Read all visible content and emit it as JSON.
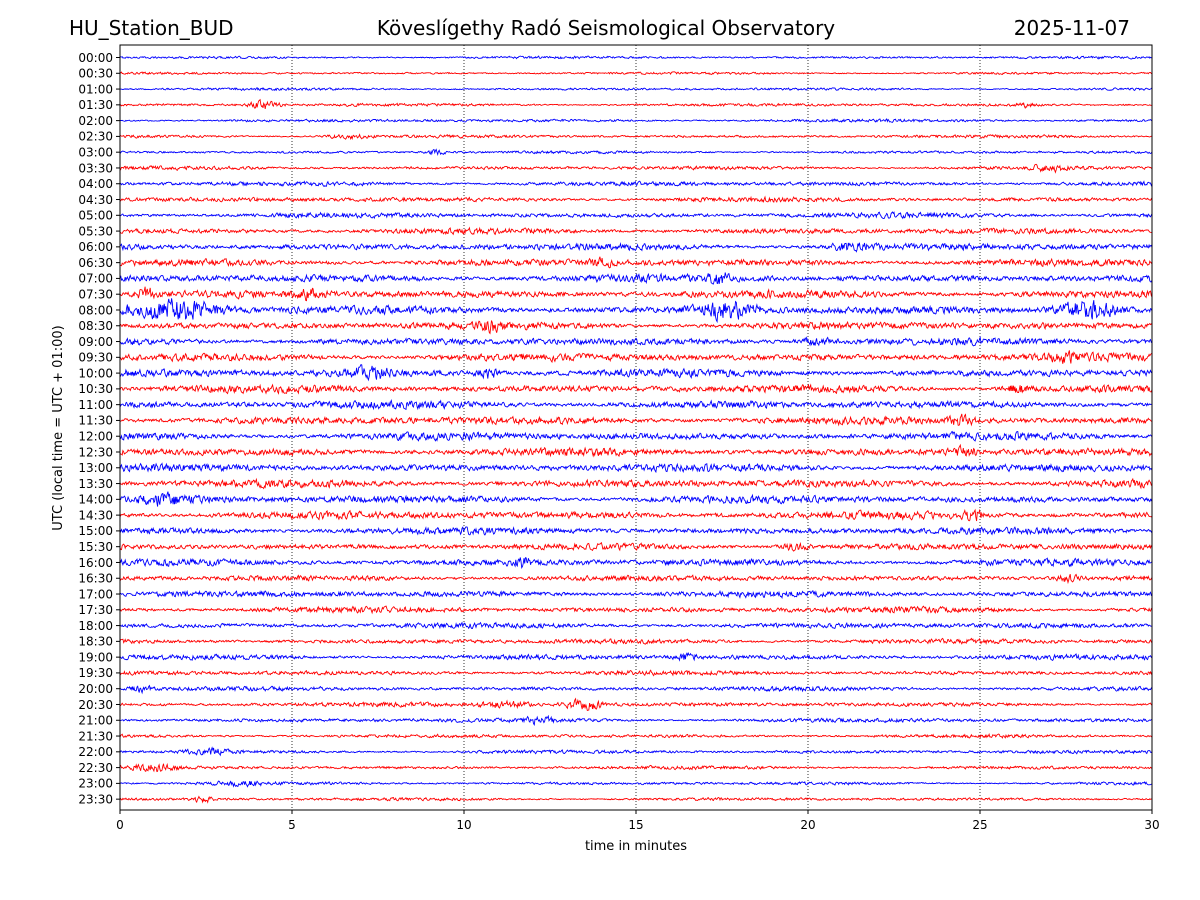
{
  "chart_data": {
    "type": "line",
    "title": {
      "left": "HU_Station_BUD",
      "center": "Köveslígethy Radó Seismological Observatory",
      "right": "2025-11-07"
    },
    "xlabel": "time in minutes",
    "ylabel": "UTC (local time = UTC + 01:00)",
    "xlim": [
      0,
      30
    ],
    "x_ticks": [
      0,
      5,
      10,
      15,
      20,
      25,
      30
    ],
    "grid": "vertical dotted",
    "series_colors": [
      "#0000ff",
      "#ff0000"
    ],
    "rows": [
      {
        "label": "00:00",
        "amp": 0.18,
        "events": []
      },
      {
        "label": "00:30",
        "amp": 0.17,
        "events": []
      },
      {
        "label": "01:00",
        "amp": 0.18,
        "events": []
      },
      {
        "label": "01:30",
        "amp": 0.22,
        "events": [
          {
            "t": 4.2,
            "amp": 0.7,
            "width": 0.4
          },
          {
            "t": 26.3,
            "amp": 0.35,
            "width": 0.3
          }
        ]
      },
      {
        "label": "02:00",
        "amp": 0.22,
        "events": []
      },
      {
        "label": "02:30",
        "amp": 0.22,
        "events": [
          {
            "t": 6.6,
            "amp": 0.35,
            "width": 0.6
          }
        ]
      },
      {
        "label": "03:00",
        "amp": 0.2,
        "events": [
          {
            "t": 9.2,
            "amp": 0.35,
            "width": 0.3
          }
        ]
      },
      {
        "label": "03:30",
        "amp": 0.26,
        "events": [
          {
            "t": 27.1,
            "amp": 0.45,
            "width": 0.6
          }
        ]
      },
      {
        "label": "04:00",
        "amp": 0.32,
        "events": []
      },
      {
        "label": "04:30",
        "amp": 0.34,
        "events": []
      },
      {
        "label": "05:00",
        "amp": 0.38,
        "events": []
      },
      {
        "label": "05:30",
        "amp": 0.4,
        "events": []
      },
      {
        "label": "06:00",
        "amp": 0.48,
        "events": [
          {
            "t": 21.2,
            "amp": 0.6,
            "width": 0.6
          }
        ]
      },
      {
        "label": "06:30",
        "amp": 0.5,
        "events": [
          {
            "t": 14.0,
            "amp": 0.6,
            "width": 0.3
          }
        ]
      },
      {
        "label": "07:00",
        "amp": 0.55,
        "events": [
          {
            "t": 17.4,
            "amp": 1.1,
            "width": 0.25
          }
        ]
      },
      {
        "label": "07:30",
        "amp": 0.55,
        "events": [
          {
            "t": 5.5,
            "amp": 0.7,
            "width": 0.4
          },
          {
            "t": 0.8,
            "amp": 1.0,
            "width": 0.3
          }
        ]
      },
      {
        "label": "08:00",
        "amp": 0.55,
        "events": [
          {
            "t": 1.6,
            "amp": 1.7,
            "width": 1.3
          },
          {
            "t": 17.6,
            "amp": 1.5,
            "width": 0.8
          },
          {
            "t": 28.1,
            "amp": 1.6,
            "width": 0.9
          }
        ]
      },
      {
        "label": "08:30",
        "amp": 0.52,
        "events": [
          {
            "t": 10.8,
            "amp": 0.6,
            "width": 0.3
          }
        ]
      },
      {
        "label": "09:00",
        "amp": 0.52,
        "events": [
          {
            "t": 20.3,
            "amp": 0.6,
            "width": 0.5
          }
        ]
      },
      {
        "label": "09:30",
        "amp": 0.55,
        "events": [
          {
            "t": 27.5,
            "amp": 0.6,
            "width": 0.5
          }
        ]
      },
      {
        "label": "10:00",
        "amp": 0.55,
        "events": [
          {
            "t": 7.2,
            "amp": 0.75,
            "width": 0.8
          },
          {
            "t": 10.7,
            "amp": 0.8,
            "width": 0.3
          }
        ]
      },
      {
        "label": "10:30",
        "amp": 0.55,
        "events": [
          {
            "t": 26.1,
            "amp": 0.7,
            "width": 0.4
          }
        ]
      },
      {
        "label": "11:00",
        "amp": 0.55,
        "events": []
      },
      {
        "label": "11:30",
        "amp": 0.55,
        "events": [
          {
            "t": 24.5,
            "amp": 0.7,
            "width": 0.4
          }
        ]
      },
      {
        "label": "12:00",
        "amp": 0.55,
        "events": []
      },
      {
        "label": "12:30",
        "amp": 0.55,
        "events": [
          {
            "t": 24.6,
            "amp": 0.7,
            "width": 0.4
          }
        ]
      },
      {
        "label": "13:00",
        "amp": 0.55,
        "events": []
      },
      {
        "label": "13:30",
        "amp": 0.55,
        "events": []
      },
      {
        "label": "14:00",
        "amp": 0.55,
        "events": [
          {
            "t": 1.3,
            "amp": 0.8,
            "width": 0.8
          }
        ]
      },
      {
        "label": "14:30",
        "amp": 0.55,
        "events": [
          {
            "t": 24.8,
            "amp": 0.7,
            "width": 0.3
          }
        ]
      },
      {
        "label": "15:00",
        "amp": 0.5,
        "events": []
      },
      {
        "label": "15:30",
        "amp": 0.45,
        "events": [
          {
            "t": 19.6,
            "amp": 0.6,
            "width": 0.4
          }
        ]
      },
      {
        "label": "16:00",
        "amp": 0.48,
        "events": [
          {
            "t": 11.7,
            "amp": 0.7,
            "width": 0.3
          }
        ]
      },
      {
        "label": "16:30",
        "amp": 0.4,
        "events": [
          {
            "t": 27.6,
            "amp": 0.6,
            "width": 0.3
          }
        ]
      },
      {
        "label": "17:00",
        "amp": 0.45,
        "events": []
      },
      {
        "label": "17:30",
        "amp": 0.42,
        "events": []
      },
      {
        "label": "18:00",
        "amp": 0.38,
        "events": []
      },
      {
        "label": "18:30",
        "amp": 0.35,
        "events": []
      },
      {
        "label": "19:00",
        "amp": 0.38,
        "events": [
          {
            "t": 16.5,
            "amp": 0.5,
            "width": 0.3
          }
        ]
      },
      {
        "label": "19:30",
        "amp": 0.32,
        "events": []
      },
      {
        "label": "20:00",
        "amp": 0.32,
        "events": [
          {
            "t": 0.6,
            "amp": 0.6,
            "width": 0.3
          }
        ]
      },
      {
        "label": "20:30",
        "amp": 0.3,
        "events": [
          {
            "t": 13.5,
            "amp": 0.85,
            "width": 0.6
          },
          {
            "t": 11.2,
            "amp": 0.5,
            "width": 0.8
          }
        ]
      },
      {
        "label": "21:00",
        "amp": 0.3,
        "events": [
          {
            "t": 12.2,
            "amp": 0.5,
            "width": 0.4
          }
        ]
      },
      {
        "label": "21:30",
        "amp": 0.25,
        "events": []
      },
      {
        "label": "22:00",
        "amp": 0.25,
        "events": [
          {
            "t": 2.6,
            "amp": 0.45,
            "width": 0.6
          }
        ]
      },
      {
        "label": "22:30",
        "amp": 0.25,
        "events": [
          {
            "t": 1.0,
            "amp": 0.5,
            "width": 0.6
          }
        ]
      },
      {
        "label": "23:00",
        "amp": 0.22,
        "events": [
          {
            "t": 3.5,
            "amp": 0.35,
            "width": 0.6
          }
        ]
      },
      {
        "label": "23:30",
        "amp": 0.22,
        "events": [
          {
            "t": 2.4,
            "amp": 0.45,
            "width": 0.3
          }
        ]
      }
    ]
  }
}
